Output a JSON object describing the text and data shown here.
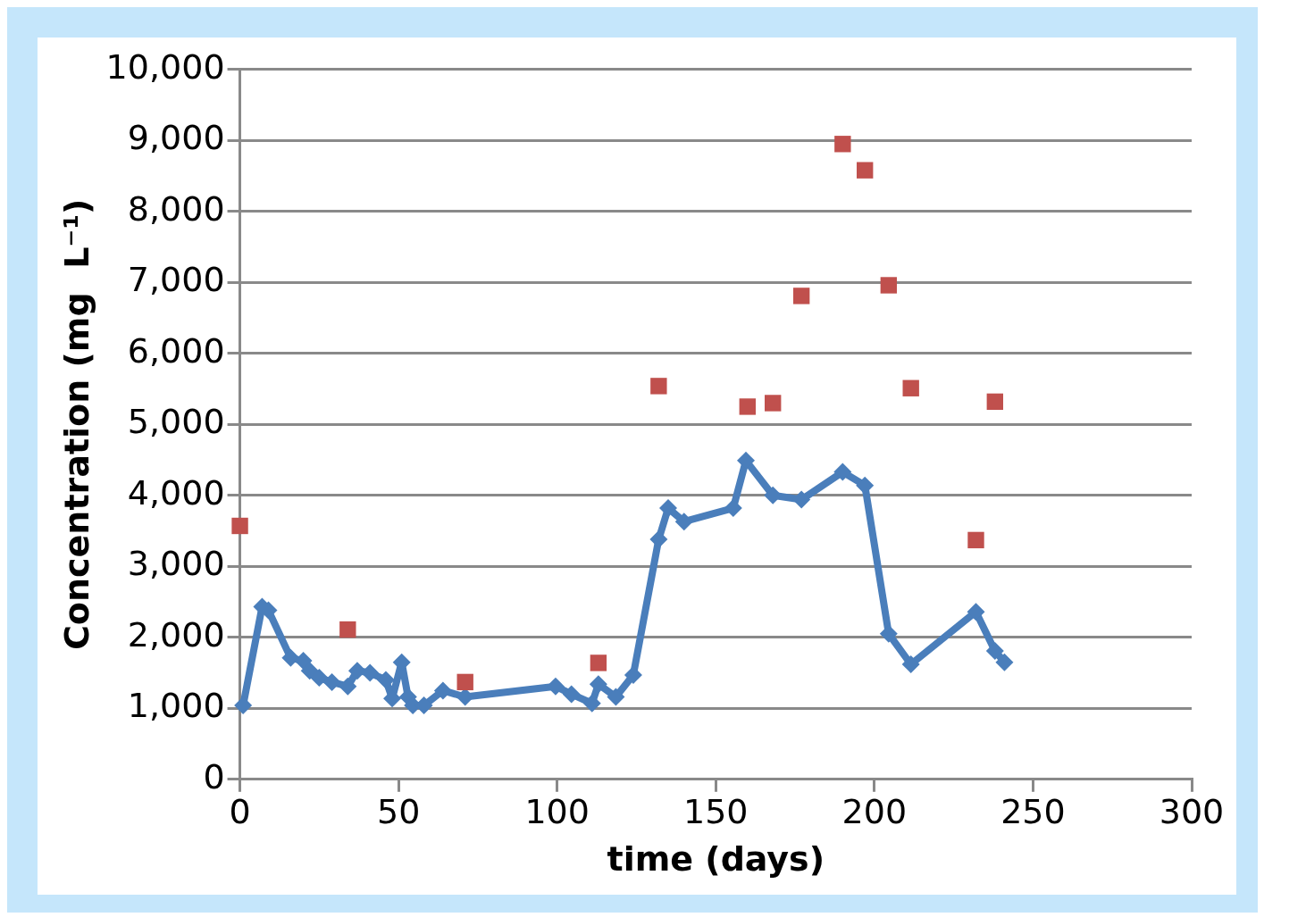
{
  "chart_data": {
    "type": "line",
    "xlabel": "time (days)",
    "ylabel": "Concentration (mg  L⁻¹)",
    "xlim": [
      0,
      300
    ],
    "xticks": [
      0,
      50,
      100,
      150,
      200,
      250,
      300
    ],
    "ylim": [
      0,
      10000
    ],
    "yticks": [
      {
        "value": 0,
        "label": "0"
      },
      {
        "value": 1000,
        "label": "1,000"
      },
      {
        "value": 2000,
        "label": "2,000"
      },
      {
        "value": 3000,
        "label": "3,000"
      },
      {
        "value": 4000,
        "label": "4,000"
      },
      {
        "value": 5000,
        "label": "5,000"
      },
      {
        "value": 6000,
        "label": "6,000"
      },
      {
        "value": 7000,
        "label": "7,000"
      },
      {
        "value": 8000,
        "label": "8,000"
      },
      {
        "value": 9000,
        "label": "9,000"
      },
      {
        "value": 10000,
        "label": "10,000"
      }
    ],
    "grid": "y",
    "legend": false,
    "series": [
      {
        "type": "line",
        "marker": "diamond",
        "color": "#4a7ebb",
        "x": [
          1,
          7,
          9,
          16,
          20,
          22,
          25,
          29,
          34,
          37,
          41,
          46,
          48,
          51,
          53,
          54.5,
          58,
          64,
          71,
          99.5,
          104.5,
          111,
          113,
          118.5,
          124,
          132,
          135,
          140,
          155.5,
          159.5,
          168,
          177,
          190,
          197,
          204.5,
          211.5,
          232,
          238,
          241
        ],
        "values": [
          1040,
          2430,
          2380,
          1710,
          1670,
          1530,
          1430,
          1370,
          1310,
          1530,
          1500,
          1400,
          1140,
          1650,
          1160,
          1040,
          1040,
          1250,
          1160,
          1310,
          1200,
          1070,
          1340,
          1160,
          1470,
          3380,
          3820,
          3630,
          3820,
          4490,
          4000,
          3940,
          4330,
          4140,
          2050,
          1620,
          2360,
          1810,
          1650
        ]
      },
      {
        "type": "scatter",
        "marker": "square",
        "color": "#c0504d",
        "x": [
          0,
          34,
          71,
          113,
          132,
          160,
          168,
          177,
          190,
          197,
          204.5,
          211.5,
          232,
          238
        ],
        "values": [
          3570,
          2110,
          1370,
          1640,
          5540,
          5250,
          5300,
          6810,
          8950,
          8580,
          6960,
          5510,
          3370,
          5320
        ]
      }
    ]
  }
}
